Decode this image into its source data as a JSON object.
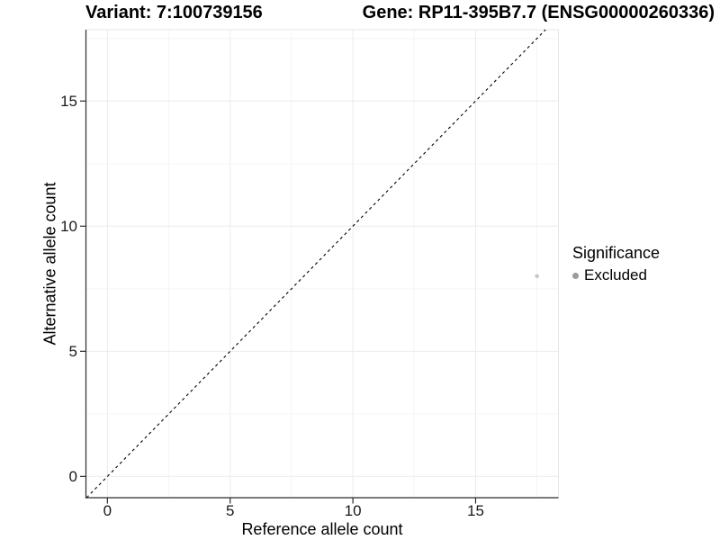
{
  "titles": {
    "variant": "Variant: 7:100739156",
    "gene": "Gene: RP11-395B7.7 (ENSG00000260336)"
  },
  "chart_data": {
    "type": "scatter",
    "title_left": "Variant: 7:100739156",
    "title_right": "Gene: RP11-395B7.7 (ENSG00000260336)",
    "xlabel": "Reference allele count",
    "ylabel": "Alternative allele count",
    "x_ticks": [
      0,
      5,
      10,
      15
    ],
    "y_ticks": [
      0,
      5,
      10,
      15
    ],
    "x_minor_ticks": [
      2.5,
      7.5,
      12.5,
      17.5
    ],
    "y_minor_ticks": [
      2.5,
      7.5,
      12.5,
      17.5
    ],
    "xlim": [
      -0.875,
      18.375
    ],
    "ylim": [
      -0.85,
      17.85
    ],
    "grid": true,
    "points": [
      {
        "x": 17.5,
        "y": 8,
        "series": "Excluded"
      }
    ],
    "reference_line": {
      "kind": "identity y=x",
      "style": "dashed"
    },
    "legend": {
      "position": "right",
      "title": "Significance",
      "items": [
        {
          "label": "Excluded"
        }
      ]
    },
    "colors": {
      "point_fill": "#c8c8c8",
      "legend_dot": "#9b9b9b",
      "grid_major": "#ebebeb",
      "grid_minor": "#f5f5f5",
      "panel_edge": "#e7e7e7",
      "axis_line": "#2b2b2b",
      "diagonal": "#000000"
    }
  }
}
